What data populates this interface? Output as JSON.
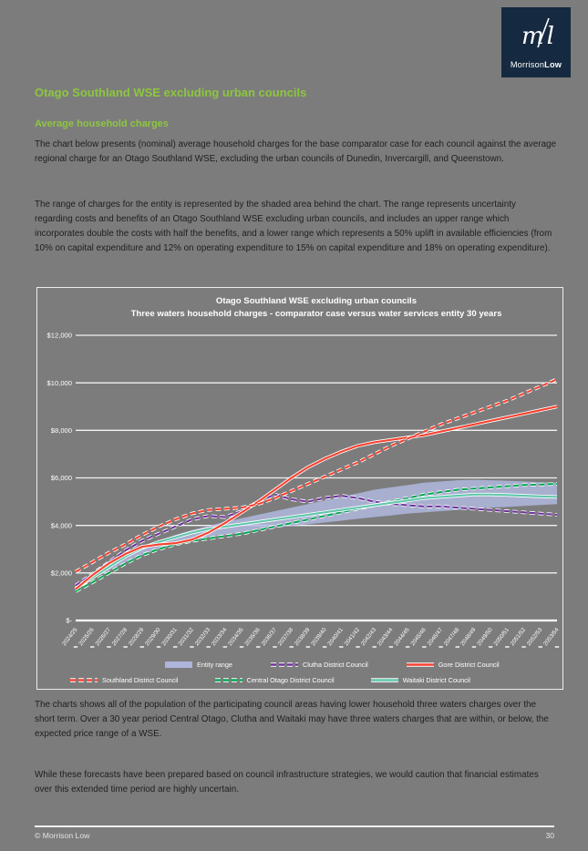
{
  "logo": {
    "brand_regular": "Morrison",
    "brand_bold": "Low",
    "mark": "ml"
  },
  "heading": "Otago Southland WSE excluding urban councils",
  "subheading": "Average household charges",
  "paragraphs": {
    "p1": "The chart below presents (nominal) average household charges for the base comparator case for each council against the average regional charge for an Otago Southland WSE, excluding the urban councils of Dunedin, Invercargill, and Queenstown.",
    "p2": "The range of charges for the entity is represented by the shaded area behind the chart.  The range represents uncertainty regarding costs and benefits of an Otago Southland WSE excluding urban councils, and includes an upper range which incorporates double the costs with half the benefits, and a lower range which represents a 50% uplift in available efficiencies (from 10% on capital expenditure and 12% on operating expenditure to 15% on capital expenditure and 18% on operating expenditure).",
    "p3": "The charts shows all of the population of the participating council areas having lower household three waters charges over the short term.  Over a 30 year period Central Otago, Clutha and Waitaki may have three waters charges that are within, or below, the expected price range of a WSE.",
    "p4": "While these forecasts have been prepared based on council infrastructure strategies, we would caution that financial estimates over this extended time period are highly uncertain."
  },
  "footer": {
    "copyright": "© Morrison Low",
    "page_number": "30"
  },
  "chart_data": {
    "type": "line",
    "title_line1": "Otago Southland WSE excluding urban councils",
    "title_line2": "Three waters household charges - comparator case versus water services entity 30 years",
    "grid": true,
    "legend_position": "bottom",
    "ylim": [
      0,
      12000
    ],
    "y_ticks": [
      "$12,000",
      "$10,000",
      "$8,000",
      "$6,000",
      "$4,000",
      "$2,000",
      "$-"
    ],
    "x": [
      "2024/25",
      "2025/26",
      "2026/27",
      "2027/28",
      "2028/29",
      "2029/30",
      "2030/31",
      "2031/32",
      "2032/33",
      "2033/34",
      "2034/35",
      "2035/36",
      "2036/37",
      "2037/38",
      "2038/39",
      "2039/40",
      "2040/41",
      "2041/42",
      "2042/43",
      "2043/44",
      "2044/45",
      "2045/46",
      "2046/47",
      "2047/48",
      "2048/49",
      "2049/50",
      "2050/51",
      "2051/52",
      "2052/53",
      "2053/54"
    ],
    "band": {
      "name": "Entity range",
      "color": "#b3bbe4",
      "opacity": 0.8,
      "lower": [
        1400,
        1750,
        2100,
        2450,
        2750,
        3000,
        3200,
        3350,
        3500,
        3600,
        3700,
        3800,
        3900,
        3980,
        4050,
        4120,
        4200,
        4280,
        4350,
        4420,
        4500,
        4550,
        4600,
        4650,
        4700,
        4750,
        4780,
        4820,
        4860,
        4900
      ],
      "upper": [
        1500,
        1900,
        2300,
        2700,
        3050,
        3350,
        3600,
        3800,
        3980,
        4150,
        4300,
        4450,
        4600,
        4750,
        4900,
        5050,
        5200,
        5350,
        5500,
        5600,
        5700,
        5800,
        5850,
        5900,
        5920,
        5900,
        5880,
        5850,
        5820,
        5800
      ]
    },
    "series": [
      {
        "name": "Clutha District Council",
        "color": "#7030a0",
        "dash": true,
        "values": [
          1470,
          1950,
          2450,
          2950,
          3350,
          3650,
          3950,
          4250,
          4400,
          4350,
          4600,
          5000,
          5300,
          5100,
          5000,
          5150,
          5250,
          5150,
          5000,
          4900,
          4850,
          4800,
          4800,
          4750,
          4700,
          4650,
          4600,
          4550,
          4500,
          4450
        ]
      },
      {
        "name": "Central Otago District Council",
        "color": "#00a651",
        "dash": true,
        "values": [
          1230,
          1600,
          2000,
          2400,
          2750,
          3000,
          3200,
          3350,
          3450,
          3550,
          3650,
          3800,
          3950,
          4100,
          4250,
          4400,
          4550,
          4700,
          4850,
          5000,
          5150,
          5300,
          5400,
          5500,
          5550,
          5600,
          5650,
          5700,
          5720,
          5750
        ]
      },
      {
        "name": "Waitaki District Council",
        "color": "#5fc6ab",
        "dash": false,
        "values": [
          1350,
          1800,
          2250,
          2700,
          3050,
          3300,
          3500,
          3700,
          3850,
          3950,
          4050,
          4150,
          4250,
          4350,
          4450,
          4550,
          4650,
          4750,
          4850,
          4950,
          5050,
          5150,
          5200,
          5250,
          5300,
          5300,
          5280,
          5250,
          5220,
          5200
        ]
      },
      {
        "name": "Gore District Council",
        "color": "#f6402e",
        "dash": false,
        "values": [
          1320,
          1900,
          2400,
          2800,
          3100,
          3200,
          3250,
          3400,
          3700,
          4100,
          4550,
          5000,
          5500,
          6000,
          6450,
          6800,
          7100,
          7350,
          7500,
          7600,
          7700,
          7800,
          7950,
          8100,
          8250,
          8400,
          8550,
          8700,
          8850,
          9000
        ]
      },
      {
        "name": "Southland District Council",
        "color": "#f6402e",
        "dash": true,
        "values": [
          2050,
          2450,
          2850,
          3200,
          3600,
          3950,
          4250,
          4500,
          4650,
          4700,
          4750,
          4900,
          5150,
          5450,
          5750,
          6050,
          6350,
          6650,
          7000,
          7350,
          7650,
          7950,
          8250,
          8500,
          8750,
          9000,
          9250,
          9550,
          9850,
          10150
        ]
      }
    ],
    "legend_rows": [
      [
        "Entity range",
        "Clutha District Council",
        "Gore District Council"
      ],
      [
        "Southland District Council",
        "Central Otago District Council",
        "Waitaki District Council"
      ]
    ]
  }
}
